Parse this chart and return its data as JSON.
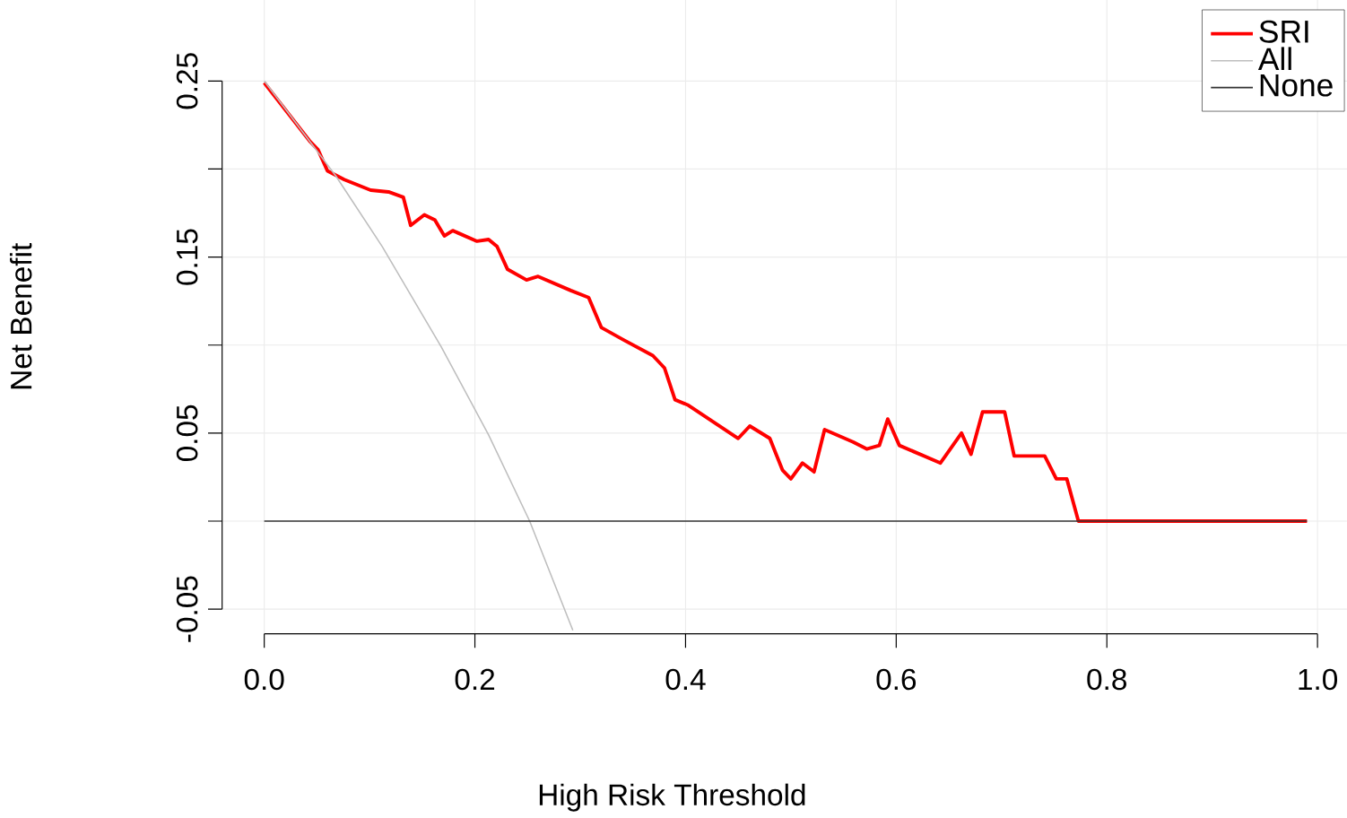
{
  "chart_data": {
    "type": "line",
    "xlabel": "High Risk Threshold",
    "ylabel": "Net Benefit",
    "xlim": [
      -0.04,
      1.028
    ],
    "ylim": [
      -0.064,
      0.296
    ],
    "xticks": [
      {
        "value": 0,
        "label": "0.0"
      },
      {
        "value": 0.2,
        "label": "0.2"
      },
      {
        "value": 0.4,
        "label": "0.4"
      },
      {
        "value": 0.6,
        "label": "0.6"
      },
      {
        "value": 0.8,
        "label": "0.8"
      },
      {
        "value": 1,
        "label": "1.0"
      }
    ],
    "yticks": [
      {
        "value": -0.05,
        "label": "-0.05"
      },
      {
        "value": 0,
        "label": null
      },
      {
        "value": 0.05,
        "label": "0.05"
      },
      {
        "value": 0.1,
        "label": null
      },
      {
        "value": 0.15,
        "label": "0.15"
      },
      {
        "value": 0.2,
        "label": null
      },
      {
        "value": 0.25,
        "label": "0.25"
      }
    ],
    "grid": true,
    "legend": "top right",
    "marker": "none",
    "line_style": "solid",
    "series": [
      {
        "name": "SRI",
        "color": "#ff0000",
        "x": [
          0,
          0.043,
          0.051,
          0.06,
          0.076,
          0.101,
          0.118,
          0.132,
          0.139,
          0.152,
          0.162,
          0.171,
          0.179,
          0.202,
          0.213,
          0.221,
          0.231,
          0.249,
          0.26,
          0.291,
          0.308,
          0.32,
          0.341,
          0.369,
          0.38,
          0.39,
          0.402,
          0.45,
          0.461,
          0.48,
          0.492,
          0.5,
          0.511,
          0.522,
          0.532,
          0.559,
          0.572,
          0.584,
          0.592,
          0.603,
          0.642,
          0.662,
          0.671,
          0.682,
          0.703,
          0.712,
          0.741,
          0.752,
          0.762,
          0.773,
          0.99
        ],
        "values": [
          0.249,
          0.216,
          0.211,
          0.199,
          0.194,
          0.188,
          0.187,
          0.184,
          0.168,
          0.174,
          0.171,
          0.162,
          0.165,
          0.159,
          0.16,
          0.156,
          0.143,
          0.137,
          0.139,
          0.131,
          0.127,
          0.11,
          0.103,
          0.094,
          0.087,
          0.069,
          0.066,
          0.047,
          0.054,
          0.047,
          0.029,
          0.024,
          0.033,
          0.028,
          0.052,
          0.045,
          0.041,
          0.043,
          0.058,
          0.043,
          0.033,
          0.05,
          0.038,
          0.062,
          0.062,
          0.037,
          0.037,
          0.024,
          0.024,
          0,
          0
        ]
      },
      {
        "name": "All",
        "color": "#bebebe",
        "x": [
          0,
          0.068,
          0.112,
          0.168,
          0.213,
          0.252,
          0.293
        ],
        "values": [
          0.25,
          0.196,
          0.156,
          0.099,
          0.049,
          0,
          -0.062
        ]
      },
      {
        "name": "None",
        "color": "#333333",
        "x": [
          0,
          0.99
        ],
        "values": [
          0,
          0
        ]
      }
    ]
  }
}
